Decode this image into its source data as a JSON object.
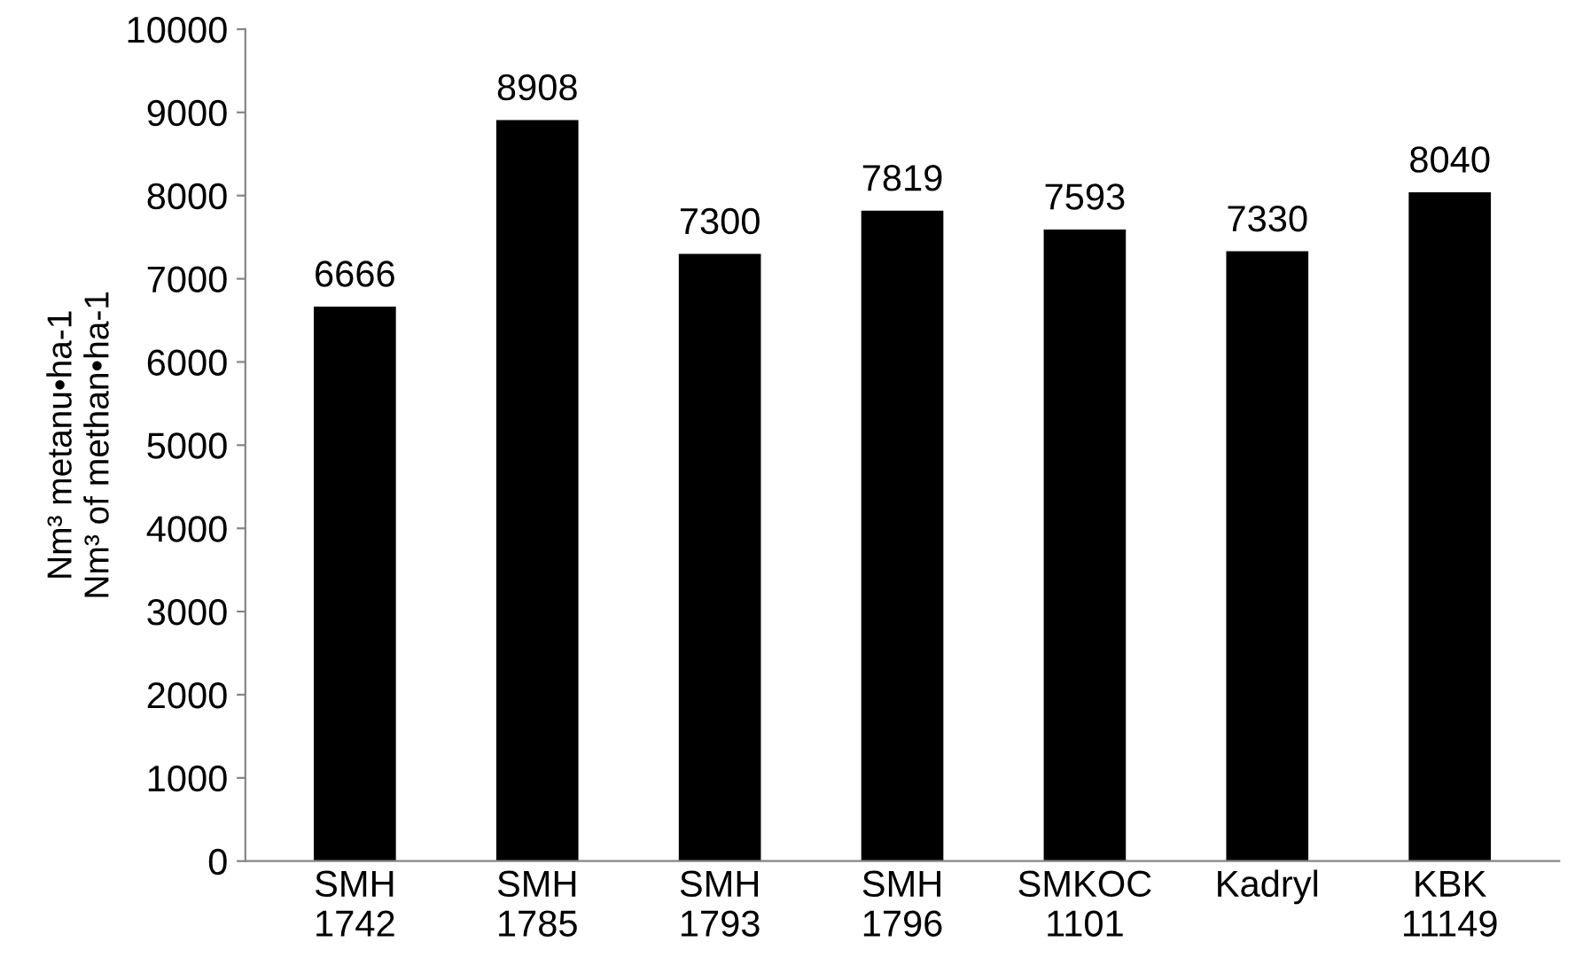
{
  "chart_data": {
    "type": "bar",
    "categories": [
      "SMH\n1742",
      "SMH\n1785",
      "SMH\n1793",
      "SMH\n1796",
      "SMKOC\n1101",
      "Kadryl",
      "KBK\n11149"
    ],
    "values": [
      6666,
      8908,
      7300,
      7819,
      7593,
      7330,
      8040
    ],
    "color": "#000000",
    "ylabel": "Nm³ metanu•ha-1\nNm³ of methan•ha-1",
    "ylim": [
      0,
      10000
    ],
    "yticks": [
      0,
      1000,
      2000,
      3000,
      4000,
      5000,
      6000,
      7000,
      8000,
      9000,
      10000
    ],
    "data_labels": true,
    "grid": false,
    "legend": false
  }
}
